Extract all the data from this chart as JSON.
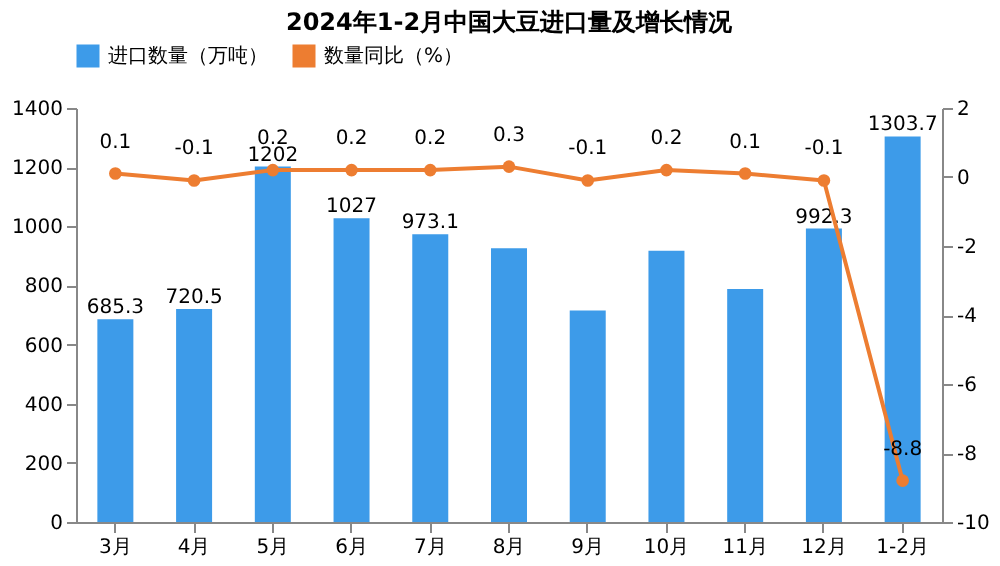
{
  "chart_data": {
    "type": "bar",
    "title": "2024年1-2月中国大豆进口量及增长情况",
    "categories": [
      "3月",
      "4月",
      "5月",
      "6月",
      "7月",
      "8月",
      "9月",
      "10月",
      "11月",
      "12月",
      "1-2月"
    ],
    "series": [
      {
        "name": "进口数量（万吨）",
        "color": "#3d9be9",
        "values": [
          685.3,
          720.5,
          1202,
          1027,
          973.1,
          926,
          715,
          917,
          788,
          992.3,
          1303.7
        ],
        "value_labels": [
          "685.3",
          "720.5",
          "1202",
          "1027",
          "973.1",
          null,
          null,
          null,
          null,
          "992.3",
          "1303.7"
        ]
      },
      {
        "name": "数量同比（%）",
        "type": "line",
        "axis": "y2",
        "color": "#ed7d31",
        "marker": "circle",
        "values": [
          0.1,
          -0.1,
          0.2,
          0.2,
          0.2,
          0.3,
          -0.1,
          0.2,
          0.1,
          -0.1,
          -8.8
        ],
        "value_labels": [
          "0.1",
          "-0.1",
          "0.2",
          "0.2",
          "0.2",
          "0.3",
          "-0.1",
          "0.2",
          "0.1",
          "-0.1",
          "-8.8"
        ]
      }
    ],
    "ylim": [
      0,
      1400
    ],
    "yticks": [
      0,
      200,
      400,
      600,
      800,
      1000,
      1200,
      1400
    ],
    "y2lim": [
      -10,
      2
    ],
    "y2ticks": [
      -10,
      -8,
      -6,
      -4,
      -2,
      0,
      2
    ],
    "legend": "top",
    "grid": false
  }
}
